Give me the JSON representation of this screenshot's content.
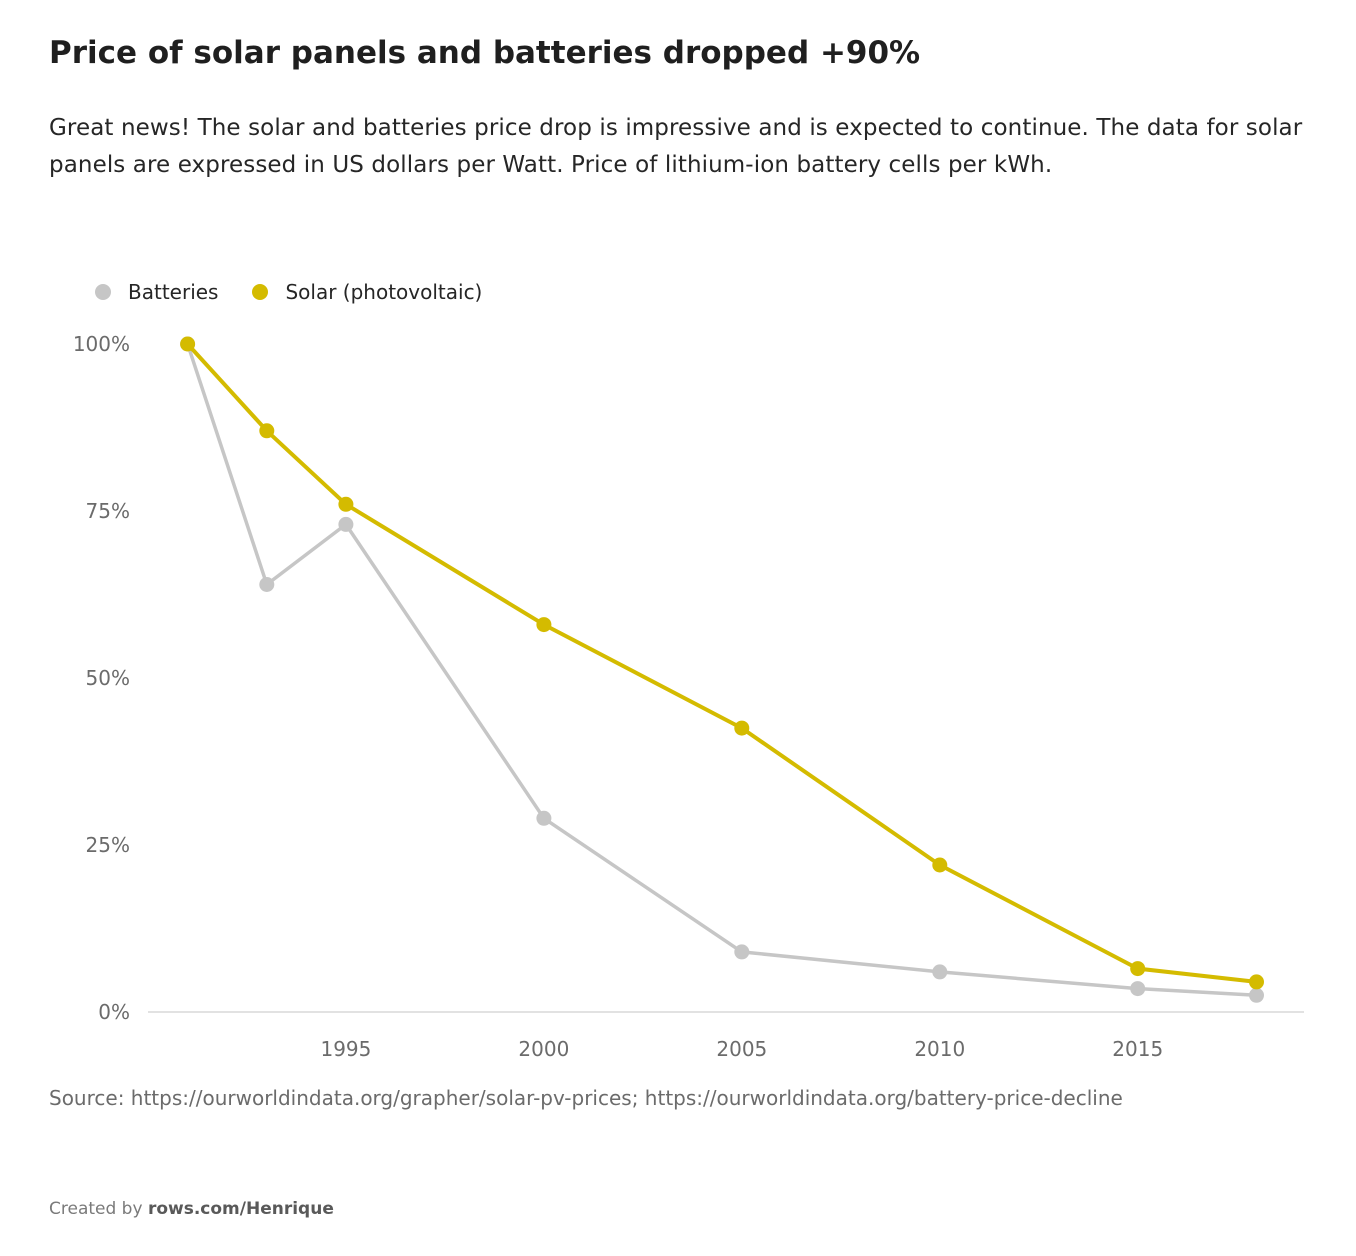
{
  "header": {
    "title": "Price of solar panels and batteries dropped +90%",
    "subtitle": "Great news! The solar and batteries price drop is impressive and is expected to continue. The data for solar panels are expressed in US dollars per Watt. Price of lithium-ion battery cells per kWh."
  },
  "legend": {
    "items": [
      {
        "label": "Batteries",
        "color": "#c6c6c6"
      },
      {
        "label": "Solar (photovoltaic)",
        "color": "#d4bb00"
      }
    ]
  },
  "footer": {
    "source": "Source: https://ourworldindata.org/grapher/solar-pv-prices; https://ourworldindata.org/battery-price-decline",
    "credit_prefix": "Created by",
    "credit_link": "rows.com/Henrique"
  },
  "colors": {
    "batteries": "#c6c6c6",
    "solar": "#d4bb00",
    "axis": "#d9d9d9",
    "tick_text": "#6b6b6b"
  },
  "chart_data": {
    "type": "line",
    "title": "",
    "xlabel": "",
    "ylabel": "",
    "xlim": [
      1990,
      2019.2
    ],
    "ylim": [
      0,
      100
    ],
    "x_ticks": [
      1995,
      2000,
      2005,
      2010,
      2015
    ],
    "x_tick_labels": [
      "1995",
      "2000",
      "2005",
      "2010",
      "2015"
    ],
    "y_ticks": [
      0,
      25,
      50,
      75,
      100
    ],
    "y_tick_labels": [
      "0%",
      "25%",
      "50%",
      "75%",
      "100%"
    ],
    "grid": false,
    "legend_position": "top-left",
    "series": [
      {
        "name": "Batteries",
        "color": "#c6c6c6",
        "x": [
          1991,
          1993,
          1995,
          2000,
          2005,
          2010,
          2015,
          2018
        ],
        "y": [
          100,
          64,
          73,
          29,
          9,
          6,
          3.5,
          2.5
        ]
      },
      {
        "name": "Solar (photovoltaic)",
        "color": "#d4bb00",
        "x": [
          1991,
          1993,
          1995,
          2000,
          2005,
          2010,
          2015,
          2018
        ],
        "y": [
          100,
          87,
          76,
          58,
          42.5,
          22,
          6.5,
          4.5
        ]
      }
    ]
  }
}
